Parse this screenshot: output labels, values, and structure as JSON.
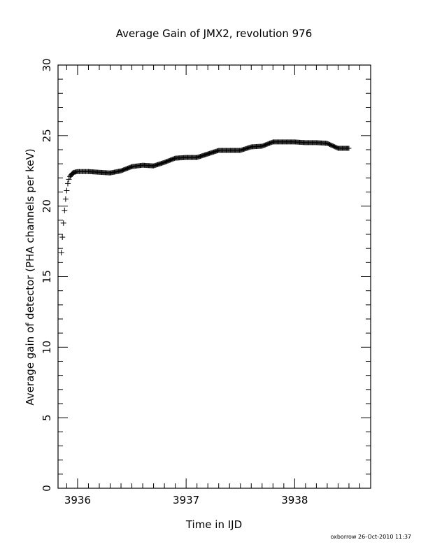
{
  "chart_data": {
    "type": "scatter",
    "title": "Average Gain of JMX2, revolution 976",
    "xlabel": "Time in IJD",
    "ylabel": "Average gain of detector (PHA channels per keV)",
    "xlim": [
      3935.82,
      3938.7
    ],
    "ylim": [
      0,
      30
    ],
    "x_ticks": [
      "3936",
      "3937",
      "3938"
    ],
    "y_ticks": [
      "0",
      "5",
      "10",
      "15",
      "20",
      "25",
      "30"
    ],
    "grid": false,
    "marker": "plus",
    "series": [
      {
        "x": [
          3935.85,
          3935.86,
          3935.87,
          3935.88,
          3935.89,
          3935.9,
          3935.91,
          3935.92,
          3935.93,
          3935.95,
          3935.97,
          3936.0,
          3936.05,
          3936.1,
          3936.2,
          3936.3,
          3936.4,
          3936.5,
          3936.6,
          3936.7,
          3936.8,
          3936.9,
          3937.0,
          3937.1,
          3937.2,
          3937.3,
          3937.4,
          3937.5,
          3937.6,
          3937.7,
          3937.8,
          3937.9,
          3938.0,
          3938.1,
          3938.2,
          3938.3,
          3938.4,
          3938.5
        ],
        "y": [
          16.7,
          17.8,
          18.8,
          19.7,
          20.5,
          21.1,
          21.6,
          21.9,
          22.1,
          22.3,
          22.4,
          22.45,
          22.45,
          22.45,
          22.4,
          22.35,
          22.5,
          22.8,
          22.9,
          22.85,
          23.1,
          23.4,
          23.45,
          23.45,
          23.7,
          23.95,
          23.95,
          23.95,
          24.2,
          24.25,
          24.55,
          24.55,
          24.55,
          24.5,
          24.5,
          24.45,
          24.1,
          24.1
        ]
      }
    ]
  },
  "footer": "oxborrow 26-Oct-2010 11:37"
}
